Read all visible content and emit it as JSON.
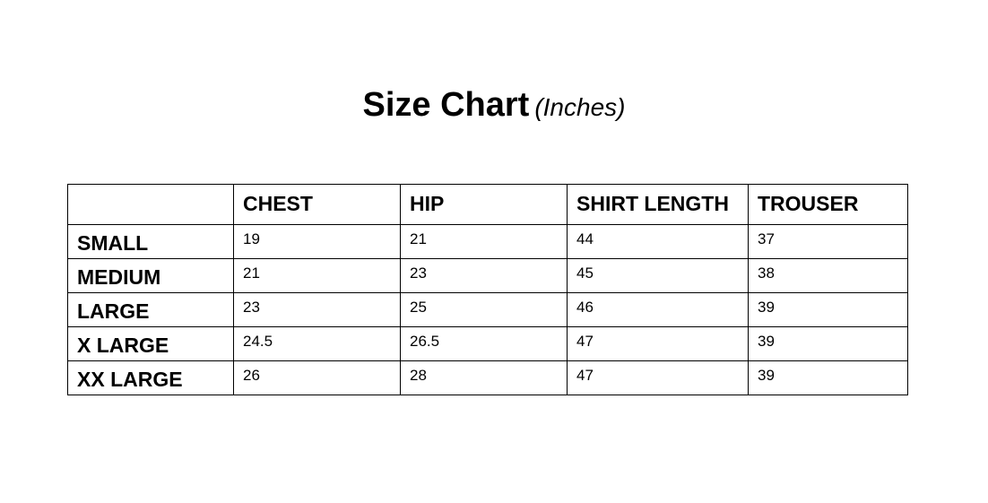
{
  "title": {
    "main": "Size Chart",
    "unit": "(Inches)"
  },
  "table": {
    "headers": [
      "",
      "CHEST",
      "HIP",
      "SHIRT LENGTH",
      "TROUSER"
    ],
    "rows": [
      {
        "size": "SMALL",
        "values": [
          "19",
          "21",
          "44",
          "37"
        ]
      },
      {
        "size": "MEDIUM",
        "values": [
          "21",
          "23",
          "45",
          "38"
        ]
      },
      {
        "size": "LARGE",
        "values": [
          "23",
          "25",
          "46",
          "39"
        ]
      },
      {
        "size": "X LARGE",
        "values": [
          "24.5",
          "26.5",
          "47",
          "39"
        ]
      },
      {
        "size": "XX LARGE",
        "values": [
          "26",
          "28",
          "47",
          "39"
        ]
      }
    ]
  }
}
